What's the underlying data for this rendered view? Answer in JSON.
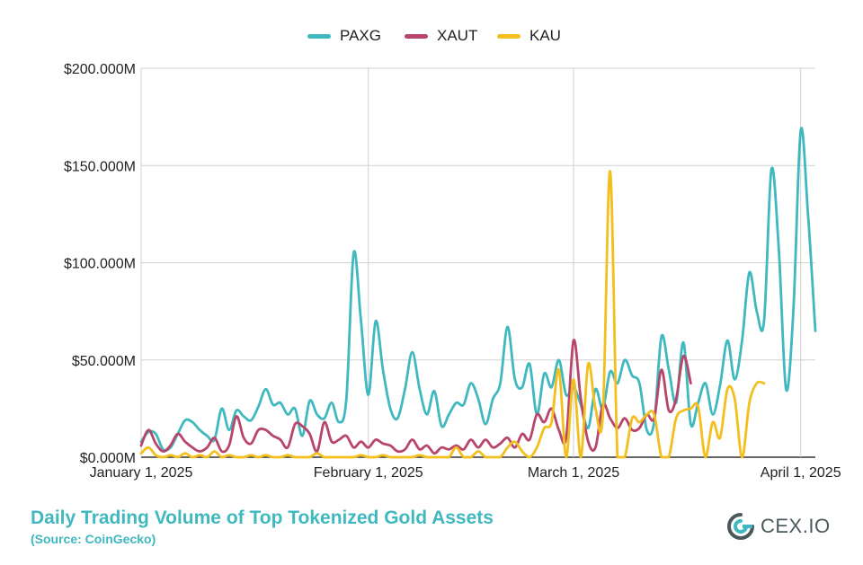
{
  "chart_data": {
    "type": "line",
    "title": "",
    "xlabel": "",
    "ylabel": "",
    "ylim": [
      0,
      200
    ],
    "y_unit": "$M",
    "yticks": [
      "$0.000M",
      "$50.000M",
      "$100.000M",
      "$150.000M",
      "$200.000M"
    ],
    "ytick_values": [
      0,
      50,
      100,
      150,
      200
    ],
    "xticks": [
      "January 1, 2025",
      "February 1, 2025",
      "March 1, 2025",
      "April 1, 2025"
    ],
    "xtick_dates": [
      "2025-01-01",
      "2025-02-01",
      "2025-03-01",
      "2025-04-01"
    ],
    "x_start": "2025-01-01",
    "x_end": "2025-04-03",
    "grid": true,
    "legend_position": "top-center",
    "series": [
      {
        "name": "PAXG",
        "color": "#3fb8bf",
        "points": [
          [
            "2025-01-01",
            8
          ],
          [
            "2025-01-02",
            13
          ],
          [
            "2025-01-03",
            12
          ],
          [
            "2025-01-04",
            4
          ],
          [
            "2025-01-05",
            5
          ],
          [
            "2025-01-06",
            12
          ],
          [
            "2025-01-07",
            19
          ],
          [
            "2025-01-08",
            18
          ],
          [
            "2025-01-09",
            14
          ],
          [
            "2025-01-10",
            11
          ],
          [
            "2025-01-11",
            9
          ],
          [
            "2025-01-12",
            25
          ],
          [
            "2025-01-13",
            14
          ],
          [
            "2025-01-14",
            24
          ],
          [
            "2025-01-15",
            21
          ],
          [
            "2025-01-16",
            19
          ],
          [
            "2025-01-17",
            26
          ],
          [
            "2025-01-18",
            35
          ],
          [
            "2025-01-19",
            27
          ],
          [
            "2025-01-20",
            28
          ],
          [
            "2025-01-21",
            22
          ],
          [
            "2025-01-22",
            25
          ],
          [
            "2025-01-23",
            11
          ],
          [
            "2025-01-24",
            29
          ],
          [
            "2025-01-25",
            22
          ],
          [
            "2025-01-26",
            20
          ],
          [
            "2025-01-27",
            28
          ],
          [
            "2025-01-28",
            18
          ],
          [
            "2025-01-29",
            30
          ],
          [
            "2025-01-30",
            105
          ],
          [
            "2025-01-31",
            70
          ],
          [
            "2025-02-01",
            32
          ],
          [
            "2025-02-02",
            70
          ],
          [
            "2025-02-03",
            45
          ],
          [
            "2025-02-04",
            25
          ],
          [
            "2025-02-05",
            20
          ],
          [
            "2025-02-06",
            35
          ],
          [
            "2025-02-07",
            54
          ],
          [
            "2025-02-08",
            35
          ],
          [
            "2025-02-09",
            22
          ],
          [
            "2025-02-10",
            34
          ],
          [
            "2025-02-11",
            16
          ],
          [
            "2025-02-12",
            22
          ],
          [
            "2025-02-13",
            28
          ],
          [
            "2025-02-14",
            27
          ],
          [
            "2025-02-15",
            38
          ],
          [
            "2025-02-16",
            30
          ],
          [
            "2025-02-17",
            17
          ],
          [
            "2025-02-18",
            30
          ],
          [
            "2025-02-19",
            38
          ],
          [
            "2025-02-20",
            67
          ],
          [
            "2025-02-21",
            40
          ],
          [
            "2025-02-22",
            36
          ],
          [
            "2025-02-23",
            48
          ],
          [
            "2025-02-24",
            22
          ],
          [
            "2025-02-25",
            43
          ],
          [
            "2025-02-26",
            36
          ],
          [
            "2025-02-27",
            50
          ],
          [
            "2025-02-28",
            32
          ],
          [
            "2025-03-01",
            36
          ],
          [
            "2025-03-02",
            27
          ],
          [
            "2025-03-03",
            15
          ],
          [
            "2025-03-04",
            35
          ],
          [
            "2025-03-05",
            25
          ],
          [
            "2025-03-06",
            44
          ],
          [
            "2025-03-07",
            38
          ],
          [
            "2025-03-08",
            50
          ],
          [
            "2025-03-09",
            42
          ],
          [
            "2025-03-10",
            38
          ],
          [
            "2025-03-11",
            14
          ],
          [
            "2025-03-12",
            18
          ],
          [
            "2025-03-13",
            62
          ],
          [
            "2025-03-14",
            45
          ],
          [
            "2025-03-15",
            28
          ],
          [
            "2025-03-16",
            59
          ],
          [
            "2025-03-17",
            17
          ],
          [
            "2025-03-18",
            28
          ],
          [
            "2025-03-19",
            38
          ],
          [
            "2025-03-20",
            22
          ],
          [
            "2025-03-21",
            37
          ],
          [
            "2025-03-22",
            60
          ],
          [
            "2025-03-23",
            40
          ],
          [
            "2025-03-24",
            60
          ],
          [
            "2025-03-25",
            95
          ],
          [
            "2025-03-26",
            75
          ],
          [
            "2025-03-27",
            70
          ],
          [
            "2025-03-28",
            148
          ],
          [
            "2025-03-29",
            108
          ],
          [
            "2025-03-30",
            35
          ],
          [
            "2025-03-31",
            75
          ],
          [
            "2025-04-01",
            168
          ],
          [
            "2025-04-02",
            125
          ],
          [
            "2025-04-03",
            65
          ]
        ]
      },
      {
        "name": "XAUT",
        "color": "#b8456a",
        "points": [
          [
            "2025-01-01",
            6
          ],
          [
            "2025-01-02",
            14
          ],
          [
            "2025-01-03",
            7
          ],
          [
            "2025-01-04",
            3
          ],
          [
            "2025-01-05",
            6
          ],
          [
            "2025-01-06",
            12
          ],
          [
            "2025-01-07",
            8
          ],
          [
            "2025-01-08",
            5
          ],
          [
            "2025-01-09",
            3
          ],
          [
            "2025-01-10",
            5
          ],
          [
            "2025-01-11",
            10
          ],
          [
            "2025-01-12",
            3
          ],
          [
            "2025-01-13",
            6
          ],
          [
            "2025-01-14",
            21
          ],
          [
            "2025-01-15",
            10
          ],
          [
            "2025-01-16",
            7
          ],
          [
            "2025-01-17",
            14
          ],
          [
            "2025-01-18",
            14
          ],
          [
            "2025-01-19",
            11
          ],
          [
            "2025-01-20",
            9
          ],
          [
            "2025-01-21",
            5
          ],
          [
            "2025-01-22",
            17
          ],
          [
            "2025-01-23",
            16
          ],
          [
            "2025-01-24",
            12
          ],
          [
            "2025-01-25",
            3
          ],
          [
            "2025-01-26",
            18
          ],
          [
            "2025-01-27",
            8
          ],
          [
            "2025-01-28",
            9
          ],
          [
            "2025-01-29",
            11
          ],
          [
            "2025-01-30",
            5
          ],
          [
            "2025-01-31",
            8
          ],
          [
            "2025-02-01",
            5
          ],
          [
            "2025-02-02",
            9
          ],
          [
            "2025-02-03",
            7
          ],
          [
            "2025-02-04",
            6
          ],
          [
            "2025-02-05",
            3
          ],
          [
            "2025-02-06",
            4
          ],
          [
            "2025-02-07",
            9
          ],
          [
            "2025-02-08",
            4
          ],
          [
            "2025-02-09",
            6
          ],
          [
            "2025-02-10",
            2
          ],
          [
            "2025-02-11",
            5
          ],
          [
            "2025-02-12",
            4
          ],
          [
            "2025-02-13",
            6
          ],
          [
            "2025-02-14",
            4
          ],
          [
            "2025-02-15",
            9
          ],
          [
            "2025-02-16",
            5
          ],
          [
            "2025-02-17",
            9
          ],
          [
            "2025-02-18",
            5
          ],
          [
            "2025-02-19",
            7
          ],
          [
            "2025-02-20",
            10
          ],
          [
            "2025-02-21",
            5
          ],
          [
            "2025-02-22",
            12
          ],
          [
            "2025-02-23",
            9
          ],
          [
            "2025-02-24",
            22
          ],
          [
            "2025-02-25",
            18
          ],
          [
            "2025-02-26",
            25
          ],
          [
            "2025-02-27",
            14
          ],
          [
            "2025-02-28",
            10
          ],
          [
            "2025-03-01",
            60
          ],
          [
            "2025-03-02",
            30
          ],
          [
            "2025-03-03",
            8
          ],
          [
            "2025-03-04",
            5
          ],
          [
            "2025-03-05",
            27
          ],
          [
            "2025-03-06",
            20
          ],
          [
            "2025-03-07",
            15
          ],
          [
            "2025-03-08",
            20
          ],
          [
            "2025-03-09",
            14
          ],
          [
            "2025-03-10",
            15
          ],
          [
            "2025-03-11",
            22
          ],
          [
            "2025-03-12",
            20
          ],
          [
            "2025-03-13",
            45
          ],
          [
            "2025-03-14",
            24
          ],
          [
            "2025-03-15",
            30
          ],
          [
            "2025-03-16",
            52
          ],
          [
            "2025-03-17",
            38
          ]
        ]
      },
      {
        "name": "KAU",
        "color": "#f2bf1d",
        "points": [
          [
            "2025-01-01",
            2
          ],
          [
            "2025-01-02",
            5
          ],
          [
            "2025-01-03",
            1
          ],
          [
            "2025-01-04",
            0
          ],
          [
            "2025-01-05",
            1
          ],
          [
            "2025-01-06",
            0
          ],
          [
            "2025-01-07",
            2
          ],
          [
            "2025-01-08",
            0
          ],
          [
            "2025-01-09",
            1
          ],
          [
            "2025-01-10",
            0
          ],
          [
            "2025-01-11",
            3
          ],
          [
            "2025-01-12",
            0
          ],
          [
            "2025-01-13",
            1
          ],
          [
            "2025-01-14",
            0
          ],
          [
            "2025-01-15",
            0
          ],
          [
            "2025-01-16",
            1
          ],
          [
            "2025-01-17",
            0
          ],
          [
            "2025-01-18",
            1
          ],
          [
            "2025-01-19",
            0
          ],
          [
            "2025-01-20",
            0
          ],
          [
            "2025-01-21",
            1
          ],
          [
            "2025-01-22",
            0
          ],
          [
            "2025-01-23",
            0
          ],
          [
            "2025-01-24",
            0
          ],
          [
            "2025-01-25",
            2
          ],
          [
            "2025-01-26",
            0
          ],
          [
            "2025-01-27",
            0
          ],
          [
            "2025-01-28",
            0
          ],
          [
            "2025-01-29",
            0
          ],
          [
            "2025-01-30",
            0
          ],
          [
            "2025-01-31",
            1
          ],
          [
            "2025-02-01",
            0
          ],
          [
            "2025-02-02",
            0
          ],
          [
            "2025-02-03",
            1
          ],
          [
            "2025-02-04",
            0
          ],
          [
            "2025-02-05",
            0
          ],
          [
            "2025-02-06",
            0
          ],
          [
            "2025-02-07",
            0
          ],
          [
            "2025-02-08",
            1
          ],
          [
            "2025-02-09",
            0
          ],
          [
            "2025-02-10",
            0
          ],
          [
            "2025-02-11",
            0
          ],
          [
            "2025-02-12",
            0
          ],
          [
            "2025-02-13",
            5
          ],
          [
            "2025-02-14",
            0
          ],
          [
            "2025-02-15",
            0
          ],
          [
            "2025-02-16",
            3
          ],
          [
            "2025-02-17",
            0
          ],
          [
            "2025-02-18",
            0
          ],
          [
            "2025-02-19",
            0
          ],
          [
            "2025-02-20",
            5
          ],
          [
            "2025-02-21",
            8
          ],
          [
            "2025-02-22",
            3
          ],
          [
            "2025-02-23",
            0
          ],
          [
            "2025-02-24",
            5
          ],
          [
            "2025-02-25",
            15
          ],
          [
            "2025-02-26",
            18
          ],
          [
            "2025-02-27",
            45
          ],
          [
            "2025-02-28",
            0
          ],
          [
            "2025-03-01",
            40
          ],
          [
            "2025-03-02",
            0
          ],
          [
            "2025-03-03",
            48
          ],
          [
            "2025-03-04",
            25
          ],
          [
            "2025-03-05",
            22
          ],
          [
            "2025-03-06",
            147
          ],
          [
            "2025-03-07",
            0
          ],
          [
            "2025-03-08",
            0
          ],
          [
            "2025-03-09",
            20
          ],
          [
            "2025-03-10",
            18
          ],
          [
            "2025-03-11",
            22
          ],
          [
            "2025-03-12",
            22
          ],
          [
            "2025-03-13",
            0
          ],
          [
            "2025-03-14",
            0
          ],
          [
            "2025-03-15",
            20
          ],
          [
            "2025-03-16",
            24
          ],
          [
            "2025-03-17",
            25
          ],
          [
            "2025-03-18",
            26
          ],
          [
            "2025-03-19",
            0
          ],
          [
            "2025-03-20",
            18
          ],
          [
            "2025-03-21",
            10
          ],
          [
            "2025-03-22",
            35
          ],
          [
            "2025-03-23",
            30
          ],
          [
            "2025-03-24",
            0
          ],
          [
            "2025-03-25",
            28
          ],
          [
            "2025-03-26",
            38
          ],
          [
            "2025-03-27",
            38
          ]
        ]
      }
    ]
  },
  "caption": {
    "title": "Daily Trading Volume of Top Tokenized Gold Assets",
    "source": "(Source: CoinGecko)"
  },
  "logo": {
    "text": "CEX.IO",
    "color": "#4a5a5c",
    "accent": "#3fb8bf"
  }
}
